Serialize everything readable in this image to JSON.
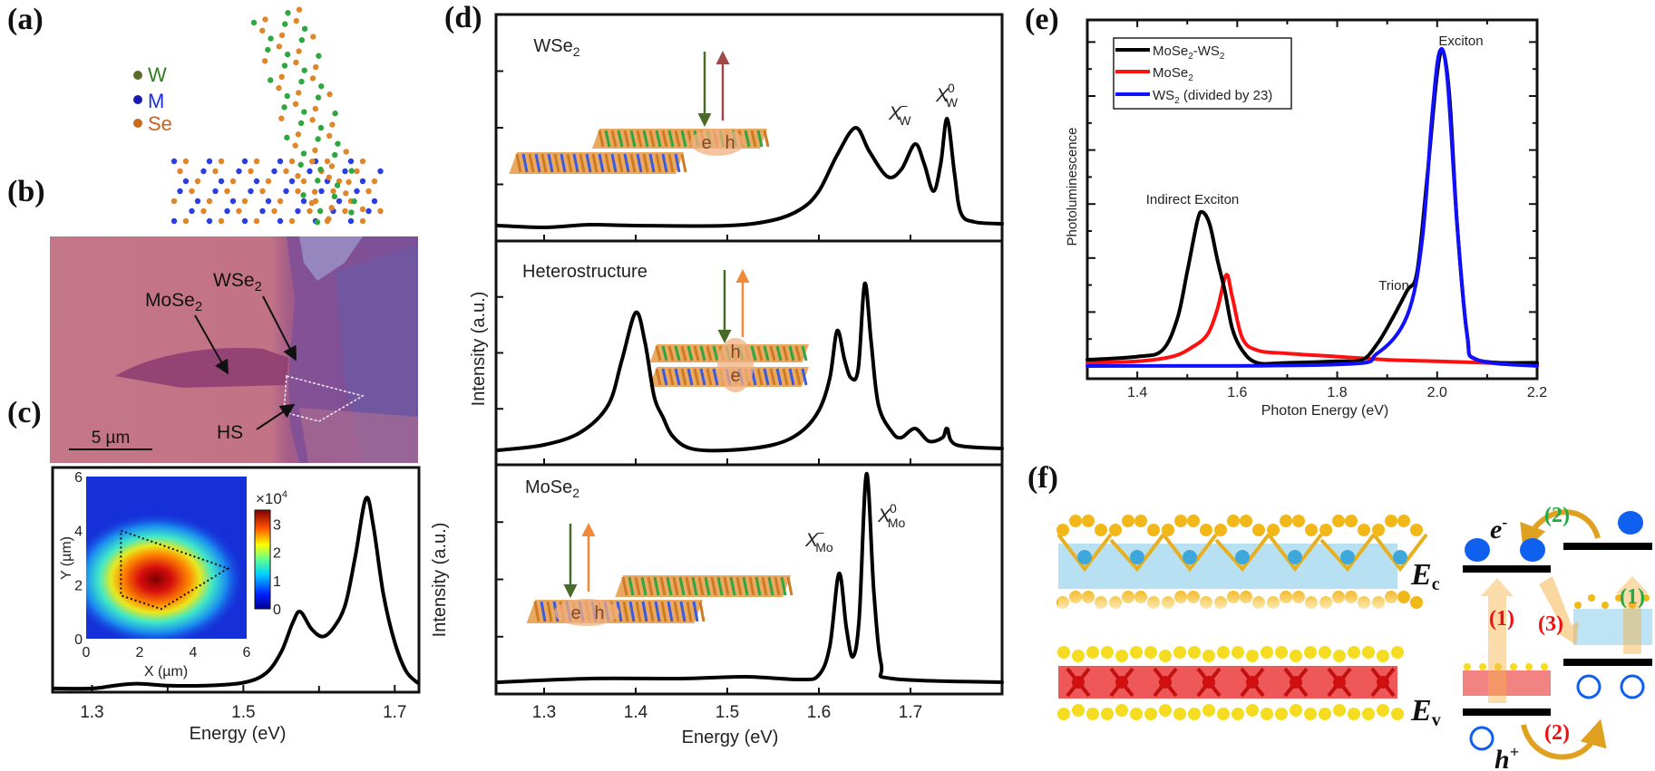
{
  "panel_labels": {
    "a": "(a)",
    "b": "(b)",
    "c": "(c)",
    "d": "(d)",
    "e": "(e)",
    "f": "(f)"
  },
  "panel_a": {
    "legend": [
      {
        "label": "W",
        "color": "#2e7d1e",
        "dot": "#5a6e2a"
      },
      {
        "label": "M",
        "color": "#1a2ee0",
        "dot": "#1a1ab0"
      },
      {
        "label": "Se",
        "color": "#c8641e",
        "dot": "#c86a1e"
      }
    ],
    "colors": {
      "se": "#e0862a",
      "m": "#2b3fe0",
      "w": "#2fa640"
    }
  },
  "panel_b": {
    "wse2": {
      "base": "WSe",
      "sub": "2"
    },
    "mose2": {
      "base": "MoSe",
      "sub": "2"
    },
    "hs": "HS",
    "scale_bar": "5 µm"
  },
  "chart_data": [
    {
      "panel": "c",
      "type": "line",
      "xlabel": "Energy (eV)",
      "xticks": [
        "1.3",
        "1.5",
        "1.7"
      ],
      "xtick_values": [
        1.3,
        1.5,
        1.7
      ],
      "minor_ticks": [
        1.4,
        1.6
      ],
      "xlim": [
        1.248,
        1.732
      ],
      "ylim": [
        0,
        1.0
      ],
      "series": [
        {
          "color": "#000000",
          "points": [
            [
              1.25,
              0.01
            ],
            [
              1.3,
              0.01
            ],
            [
              1.33,
              0.025
            ],
            [
              1.36,
              0.035
            ],
            [
              1.4,
              0.025
            ],
            [
              1.45,
              0.025
            ],
            [
              1.5,
              0.04
            ],
            [
              1.53,
              0.09
            ],
            [
              1.55,
              0.2
            ],
            [
              1.565,
              0.35
            ],
            [
              1.575,
              0.41
            ],
            [
              1.59,
              0.32
            ],
            [
              1.605,
              0.28
            ],
            [
              1.62,
              0.33
            ],
            [
              1.635,
              0.45
            ],
            [
              1.648,
              0.7
            ],
            [
              1.662,
              1.0
            ],
            [
              1.672,
              0.85
            ],
            [
              1.685,
              0.5
            ],
            [
              1.7,
              0.25
            ],
            [
              1.715,
              0.1
            ],
            [
              1.73,
              0.04
            ]
          ]
        }
      ],
      "inset": {
        "type": "heatmap",
        "xlabel": "X (µm)",
        "ylabel": "Y (µm)",
        "xticks": [
          "0",
          "2",
          "4",
          "6"
        ],
        "yticks": [
          "0",
          "2",
          "4",
          "6"
        ],
        "range_um": [
          0,
          6
        ],
        "hotspot_center_um": [
          2.6,
          2.2
        ],
        "region_outline_um": [
          [
            1.3,
            4.0
          ],
          [
            5.3,
            2.6
          ],
          [
            2.8,
            1.1
          ],
          [
            1.3,
            1.6
          ]
        ],
        "colorbar": {
          "prefix": "×10",
          "exponent": "4",
          "ticks": [
            "0",
            "1",
            "2",
            "3"
          ],
          "range": [
            0,
            3.5
          ]
        }
      }
    },
    {
      "panel": "d",
      "type": "line",
      "xlabel": "Energy (eV)",
      "ylabel": "Intensity (a.u.)",
      "xticks": [
        "1.3",
        "1.4",
        "1.5",
        "1.6",
        "1.7"
      ],
      "xtick_values": [
        1.3,
        1.4,
        1.5,
        1.6,
        1.7
      ],
      "xlim": [
        1.2475,
        1.8
      ],
      "subplots": [
        {
          "label": {
            "base": "WSe",
            "sub": "2"
          },
          "up_arrow_color": "#a04848",
          "peaks": [
            {
              "base": "X",
              "sub": "W",
              "sup": "−"
            },
            {
              "base": "X",
              "sub": "W",
              "sup": "0"
            }
          ],
          "points": [
            [
              1.25,
              0.01
            ],
            [
              1.3,
              0.0
            ],
            [
              1.35,
              0.015
            ],
            [
              1.4,
              0.01
            ],
            [
              1.5,
              0.01
            ],
            [
              1.55,
              0.04
            ],
            [
              1.58,
              0.1
            ],
            [
              1.6,
              0.2
            ],
            [
              1.62,
              0.4
            ],
            [
              1.64,
              0.55
            ],
            [
              1.655,
              0.42
            ],
            [
              1.675,
              0.28
            ],
            [
              1.69,
              0.32
            ],
            [
              1.705,
              0.46
            ],
            [
              1.715,
              0.35
            ],
            [
              1.725,
              0.2
            ],
            [
              1.733,
              0.35
            ],
            [
              1.74,
              0.6
            ],
            [
              1.748,
              0.3
            ],
            [
              1.755,
              0.08
            ],
            [
              1.77,
              0.03
            ],
            [
              1.8,
              0.02
            ]
          ]
        },
        {
          "label": {
            "base": "Heterostructure",
            "sub": ""
          },
          "up_arrow_color": "#f08a3a",
          "peaks": [],
          "points": [
            [
              1.25,
              0.0
            ],
            [
              1.3,
              0.03
            ],
            [
              1.34,
              0.1
            ],
            [
              1.37,
              0.25
            ],
            [
              1.385,
              0.5
            ],
            [
              1.4,
              0.76
            ],
            [
              1.41,
              0.6
            ],
            [
              1.42,
              0.3
            ],
            [
              1.43,
              0.18
            ],
            [
              1.44,
              0.08
            ],
            [
              1.46,
              0.01
            ],
            [
              1.5,
              0.0
            ],
            [
              1.55,
              0.03
            ],
            [
              1.58,
              0.1
            ],
            [
              1.6,
              0.22
            ],
            [
              1.612,
              0.4
            ],
            [
              1.62,
              0.66
            ],
            [
              1.628,
              0.5
            ],
            [
              1.635,
              0.4
            ],
            [
              1.643,
              0.45
            ],
            [
              1.65,
              0.92
            ],
            [
              1.657,
              0.6
            ],
            [
              1.665,
              0.25
            ],
            [
              1.68,
              0.1
            ],
            [
              1.69,
              0.07
            ],
            [
              1.705,
              0.12
            ],
            [
              1.72,
              0.05
            ],
            [
              1.735,
              0.07
            ],
            [
              1.74,
              0.12
            ],
            [
              1.75,
              0.03
            ],
            [
              1.8,
              0.01
            ]
          ]
        },
        {
          "label": {
            "base": "MoSe",
            "sub": "2"
          },
          "up_arrow_color": "#f08a3a",
          "peaks": [
            {
              "base": "X",
              "sub": "Mo",
              "sup": "−"
            },
            {
              "base": "X",
              "sub": "Mo",
              "sup": "0"
            }
          ],
          "points": [
            [
              1.25,
              0.0
            ],
            [
              1.35,
              0.02
            ],
            [
              1.45,
              0.02
            ],
            [
              1.52,
              0.03
            ],
            [
              1.58,
              0.015
            ],
            [
              1.6,
              0.04
            ],
            [
              1.612,
              0.2
            ],
            [
              1.622,
              0.6
            ],
            [
              1.63,
              0.3
            ],
            [
              1.637,
              0.14
            ],
            [
              1.644,
              0.35
            ],
            [
              1.652,
              1.15
            ],
            [
              1.66,
              0.5
            ],
            [
              1.668,
              0.1
            ],
            [
              1.68,
              0.02
            ],
            [
              1.8,
              0.0
            ]
          ]
        }
      ],
      "cartoon_labels": {
        "e": "e",
        "h": "h"
      }
    },
    {
      "panel": "e",
      "type": "line",
      "xlabel": "Photon Energy (eV)",
      "ylabel": "Photoluminescence",
      "xticks": [
        "1.4",
        "1.6",
        "1.8",
        "2.0",
        "2.2"
      ],
      "xtick_values": [
        1.4,
        1.6,
        1.8,
        2.0,
        2.2
      ],
      "xlim": [
        1.3,
        2.2
      ],
      "ylim": [
        0,
        1.0
      ],
      "legend_position": "top-left",
      "annotations": [
        "Indirect Exciton",
        "Trion",
        "Exciton"
      ],
      "series": [
        {
          "name": {
            "base": "MoSe",
            "sub": "2",
            "rest": "-WS",
            "sub2": "2",
            "tail": ""
          },
          "color": "#000000",
          "points": [
            [
              1.3,
              0.02
            ],
            [
              1.4,
              0.03
            ],
            [
              1.45,
              0.05
            ],
            [
              1.48,
              0.15
            ],
            [
              1.5,
              0.3
            ],
            [
              1.52,
              0.46
            ],
            [
              1.53,
              0.49
            ],
            [
              1.545,
              0.45
            ],
            [
              1.56,
              0.34
            ],
            [
              1.575,
              0.24
            ],
            [
              1.59,
              0.12
            ],
            [
              1.61,
              0.05
            ],
            [
              1.64,
              0.01
            ],
            [
              1.7,
              0.01
            ],
            [
              1.8,
              0.015
            ],
            [
              1.85,
              0.02
            ],
            [
              1.88,
              0.07
            ],
            [
              1.91,
              0.15
            ],
            [
              1.94,
              0.24
            ],
            [
              1.96,
              0.3
            ],
            [
              1.98,
              0.6
            ],
            [
              2.0,
              0.93
            ],
            [
              2.012,
              1.0
            ],
            [
              2.025,
              0.85
            ],
            [
              2.04,
              0.45
            ],
            [
              2.06,
              0.1
            ],
            [
              2.08,
              0.02
            ],
            [
              2.2,
              0.01
            ]
          ]
        },
        {
          "name": {
            "base": "MoSe",
            "sub": "2",
            "rest": "",
            "sub2": "",
            "tail": ""
          },
          "color": "#ff1010",
          "points": [
            [
              1.3,
              0.01
            ],
            [
              1.4,
              0.015
            ],
            [
              1.47,
              0.03
            ],
            [
              1.51,
              0.06
            ],
            [
              1.54,
              0.1
            ],
            [
              1.56,
              0.18
            ],
            [
              1.578,
              0.29
            ],
            [
              1.59,
              0.22
            ],
            [
              1.61,
              0.09
            ],
            [
              1.64,
              0.05
            ],
            [
              1.7,
              0.04
            ],
            [
              1.8,
              0.03
            ],
            [
              1.9,
              0.02
            ],
            [
              2.0,
              0.015
            ],
            [
              2.2,
              0.005
            ]
          ]
        },
        {
          "name": {
            "base": "WS",
            "sub": "2",
            "rest": "",
            "sub2": "",
            "tail": " (divided by 23)"
          },
          "color": "#1010ff",
          "points": [
            [
              1.3,
              0.0
            ],
            [
              1.8,
              0.005
            ],
            [
              1.88,
              0.04
            ],
            [
              1.94,
              0.16
            ],
            [
              1.97,
              0.4
            ],
            [
              1.99,
              0.8
            ],
            [
              2.005,
              1.0
            ],
            [
              2.02,
              0.92
            ],
            [
              2.04,
              0.45
            ],
            [
              2.06,
              0.1
            ],
            [
              2.08,
              0.02
            ],
            [
              2.2,
              0.0
            ]
          ]
        }
      ]
    }
  ],
  "panel_f": {
    "ec": {
      "base": "E",
      "sub": "c"
    },
    "ev": {
      "base": "E",
      "sub": "v"
    },
    "electron": {
      "base": "e",
      "sup": "-"
    },
    "hole": {
      "base": "h",
      "sup": "+"
    },
    "steps": [
      {
        "label": "(2)",
        "color": "#22aa44"
      },
      {
        "label": "(1)",
        "color": "#ee1111"
      },
      {
        "label": "(3)",
        "color": "#ee1111"
      },
      {
        "label": "(1)",
        "color": "#22aa44"
      },
      {
        "label": "(2)",
        "color": "#ee1111"
      }
    ],
    "colors": {
      "carrier": "#1060f0",
      "arrow": "#e0a020",
      "level": "#000000"
    }
  }
}
